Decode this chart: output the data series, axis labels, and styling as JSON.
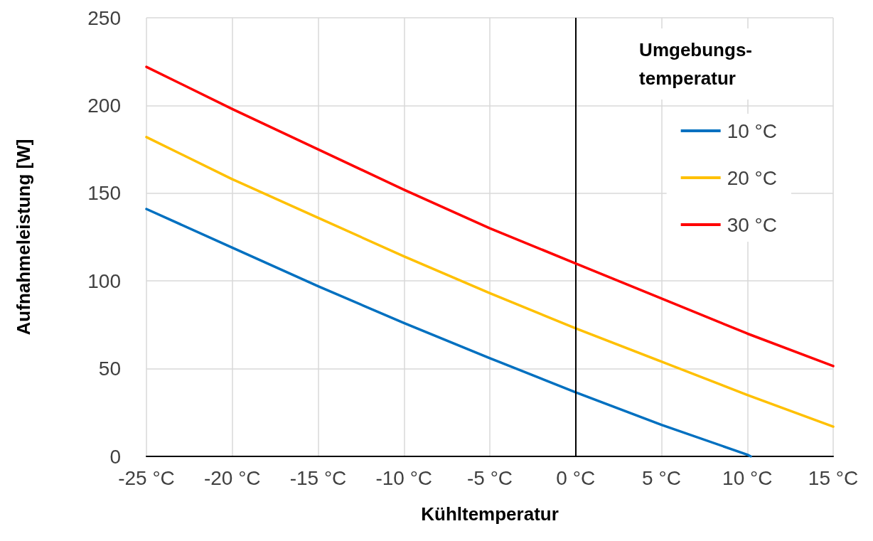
{
  "chart_data": {
    "type": "line",
    "xlabel": "Kühltemperatur",
    "ylabel": "Aufnahmeleistung [W]",
    "legend_title": "Umgebungs-\ntemperatur",
    "x": [
      -25,
      -20,
      -15,
      -10,
      -5,
      0,
      5,
      10,
      15
    ],
    "series": [
      {
        "name": "10 °C",
        "color": "#0070c0",
        "x": [
          -25,
          -20,
          -15,
          -10,
          -5,
          0,
          5,
          10,
          10.2
        ],
        "values": [
          141,
          119,
          97,
          76,
          56,
          36.5,
          18,
          1,
          0
        ]
      },
      {
        "name": "20 °C",
        "color": "#ffc000",
        "values": [
          182,
          158,
          136,
          114,
          93,
          73,
          54,
          35,
          17
        ]
      },
      {
        "name": "30 °C",
        "color": "#ff0000",
        "values": [
          222,
          198,
          175,
          152,
          130,
          110,
          90,
          70,
          51.5
        ]
      }
    ],
    "xlim": [
      -25,
      15
    ],
    "xticks": [
      {
        "value": -25,
        "label": "-25 °C"
      },
      {
        "value": -20,
        "label": "-20 °C"
      },
      {
        "value": -15,
        "label": "-15 °C"
      },
      {
        "value": -10,
        "label": "-10 °C"
      },
      {
        "value": -5,
        "label": "-5 °C"
      },
      {
        "value": 0,
        "label": "0 °C"
      },
      {
        "value": 5,
        "label": "5 °C"
      },
      {
        "value": 10,
        "label": "10 °C"
      },
      {
        "value": 15,
        "label": "15 °C"
      }
    ],
    "ylim": [
      0,
      250
    ],
    "yticks": [
      0,
      50,
      100,
      150,
      200,
      250
    ],
    "ref_lines": [
      {
        "axis": "x",
        "value": 0,
        "color": "#000000"
      }
    ],
    "grid": true,
    "legend": "top right",
    "marker": "none",
    "line_style": "solid"
  }
}
